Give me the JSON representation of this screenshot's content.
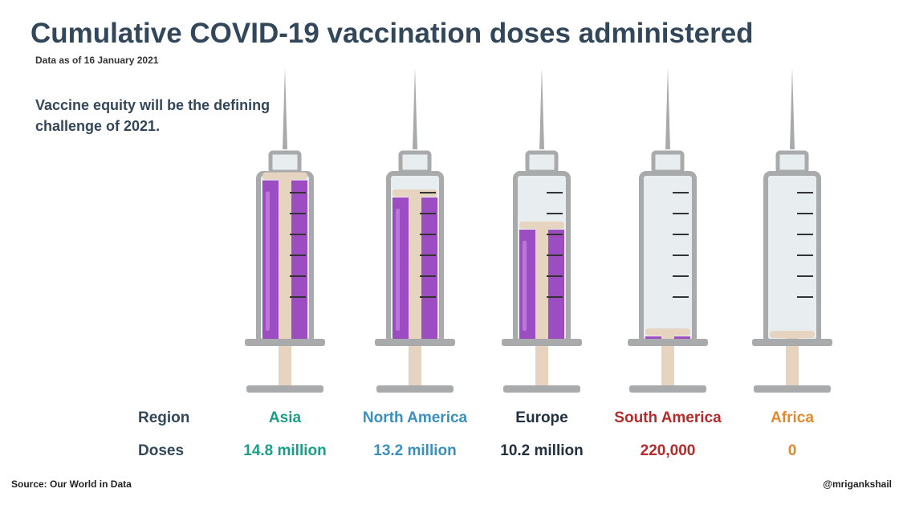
{
  "header": {
    "title": "Cumulative COVID-19 vaccination doses administered",
    "subtitle": "Data as of 16 January 2021",
    "lede": "Vaccine equity will be the defining challenge of 2021."
  },
  "table": {
    "region_label": "Region",
    "doses_label": "Doses"
  },
  "footer": {
    "source": "Source: Our World in Data",
    "handle": "@mrigankshail"
  },
  "colors": {
    "liquid": "#9b4dc1",
    "liquid_light": "#b977d8",
    "plunger": "#e6d3c0",
    "barrel": "#e8edf0",
    "outline": "#a9aaab",
    "needle": "#a9aaab",
    "tick": "#333333"
  },
  "chart_data": {
    "type": "bar",
    "categories": [
      "Asia",
      "North America",
      "Europe",
      "South America",
      "Africa"
    ],
    "values": [
      14800000,
      13200000,
      10200000,
      220000,
      0
    ],
    "value_labels": [
      "14.8 million",
      "13.2 million",
      "10.2 million",
      "220,000",
      "0"
    ],
    "category_colors": [
      "#1a9e86",
      "#3a8fbf",
      "#22313f",
      "#b52a2a",
      "#e08a2e"
    ],
    "ylim": [
      0,
      15000000
    ]
  }
}
